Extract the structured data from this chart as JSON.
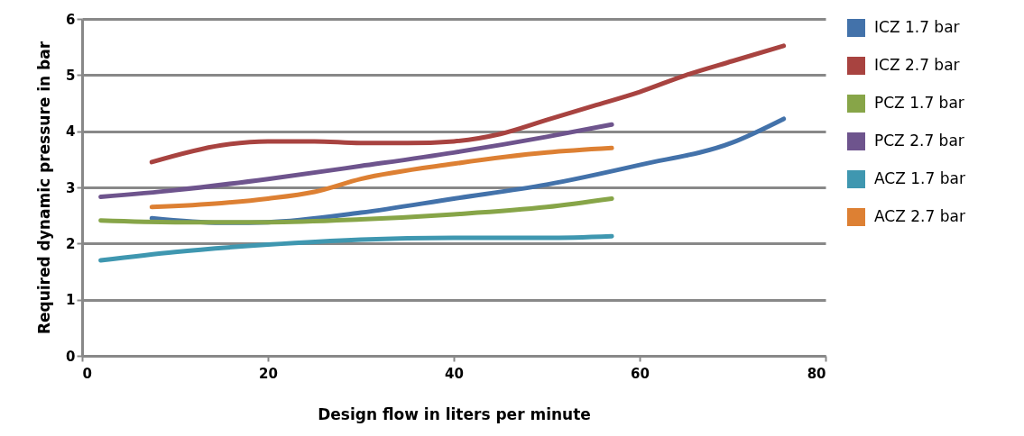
{
  "chart_data": {
    "type": "line",
    "xlabel": "Design flow in liters per minute",
    "ylabel": "Required dynamic pressure in bar",
    "xlim": [
      0,
      80
    ],
    "xticks": [
      0,
      20,
      40,
      60,
      80
    ],
    "ylim": [
      0,
      6
    ],
    "yticks": [
      0,
      1,
      2,
      3,
      4,
      5,
      6
    ],
    "grid": "y",
    "legend": "right",
    "line_style": "solid",
    "marker": "none",
    "series": [
      {
        "name": "ICZ 1.7 bar",
        "color": "#4372aa",
        "x": [
          7.5,
          15,
          20,
          30,
          40,
          50,
          60,
          70,
          75.5
        ],
        "values": [
          2.45,
          2.37,
          2.38,
          2.55,
          2.8,
          3.05,
          3.4,
          3.8,
          4.22
        ]
      },
      {
        "name": "ICZ 2.7 bar",
        "color": "#a84340",
        "x": [
          7.5,
          15,
          20,
          25,
          30,
          35,
          40,
          45,
          50,
          55,
          60,
          65,
          70,
          75.5
        ],
        "values": [
          3.45,
          3.75,
          3.82,
          3.82,
          3.79,
          3.79,
          3.82,
          3.95,
          4.2,
          4.45,
          4.7,
          5.0,
          5.25,
          5.52
        ]
      },
      {
        "name": "PCZ 1.7 bar",
        "color": "#87a548",
        "x": [
          2,
          10,
          20,
          30,
          40,
          50,
          57
        ],
        "values": [
          2.41,
          2.38,
          2.38,
          2.43,
          2.52,
          2.65,
          2.8
        ]
      },
      {
        "name": "PCZ 2.7 bar",
        "color": "#6e548d",
        "x": [
          2,
          10,
          20,
          30,
          40,
          50,
          57
        ],
        "values": [
          2.83,
          2.95,
          3.15,
          3.38,
          3.62,
          3.9,
          4.12
        ]
      },
      {
        "name": "ACZ 1.7 bar",
        "color": "#3f97b0",
        "x": [
          2,
          10,
          20,
          30,
          40,
          50,
          57
        ],
        "values": [
          1.7,
          1.85,
          1.98,
          2.07,
          2.1,
          2.1,
          2.13
        ]
      },
      {
        "name": "ACZ 2.7 bar",
        "color": "#dd8033",
        "x": [
          7.5,
          15,
          20,
          25,
          30,
          40,
          50,
          57
        ],
        "values": [
          2.65,
          2.72,
          2.8,
          2.92,
          3.15,
          3.42,
          3.62,
          3.7
        ]
      }
    ]
  }
}
